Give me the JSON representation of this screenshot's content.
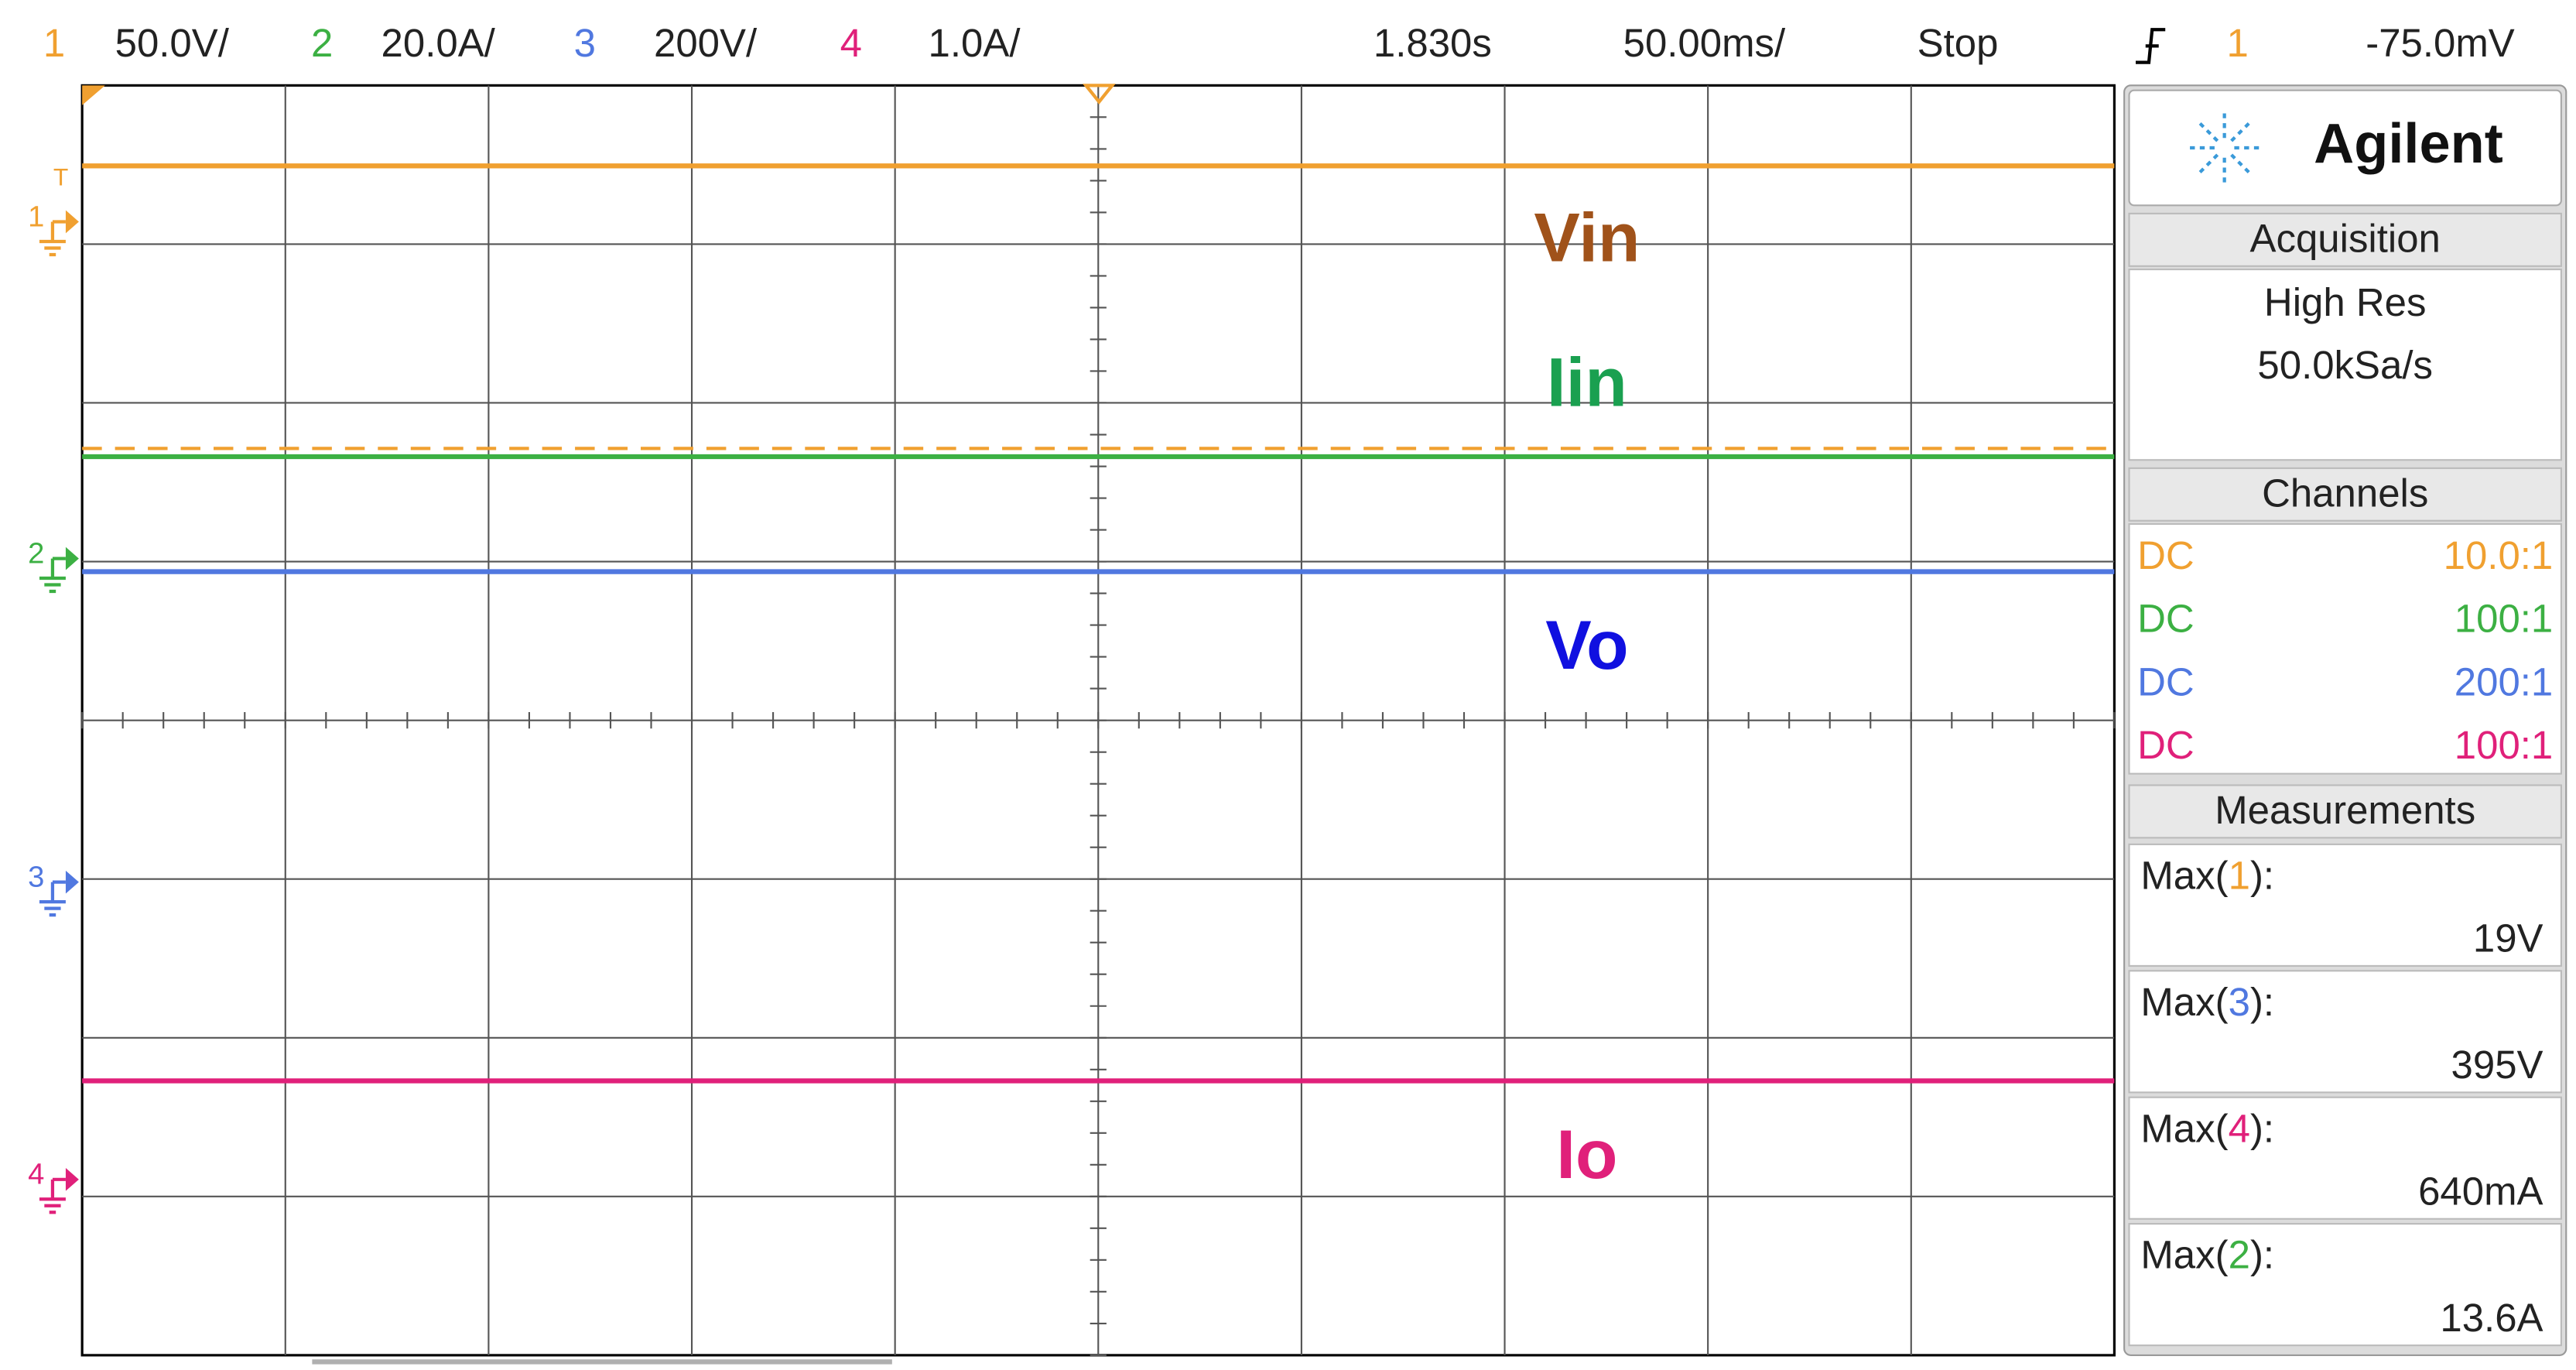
{
  "header": {
    "channels": [
      {
        "num": "1",
        "scale": "50.0V/"
      },
      {
        "num": "2",
        "scale": "20.0A/"
      },
      {
        "num": "3",
        "scale": "200V/"
      },
      {
        "num": "4",
        "scale": "1.0A/"
      }
    ],
    "delay": "1.830s",
    "timebase": "50.00ms/",
    "status": "Stop",
    "trigger_source": "1",
    "trigger_level": "-75.0mV"
  },
  "markers": {
    "trigger": "T",
    "channels": [
      "1",
      "2",
      "3",
      "4"
    ]
  },
  "labels": {
    "vin": "Vin",
    "iin": "Iin",
    "vo": "Vo",
    "io": "Io"
  },
  "panel": {
    "brand": "Agilent",
    "acquisition": {
      "title": "Acquisition",
      "mode": "High Res",
      "rate": "50.0kSa/s"
    },
    "channels": {
      "title": "Channels",
      "rows": [
        {
          "coupling": "DC",
          "probe": "10.0:1"
        },
        {
          "coupling": "DC",
          "probe": "100:1"
        },
        {
          "coupling": "DC",
          "probe": "200:1"
        },
        {
          "coupling": "DC",
          "probe": "100:1"
        }
      ]
    },
    "measurements": {
      "title": "Measurements",
      "items": [
        {
          "prefix": "Max(",
          "channel": "1",
          "suffix": "):",
          "value": "19V"
        },
        {
          "prefix": "Max(",
          "channel": "3",
          "suffix": "):",
          "value": "395V"
        },
        {
          "prefix": "Max(",
          "channel": "4",
          "suffix": "):",
          "value": "640mA"
        },
        {
          "prefix": "Max(",
          "channel": "2",
          "suffix": "):",
          "value": "13.6A"
        }
      ]
    }
  }
}
